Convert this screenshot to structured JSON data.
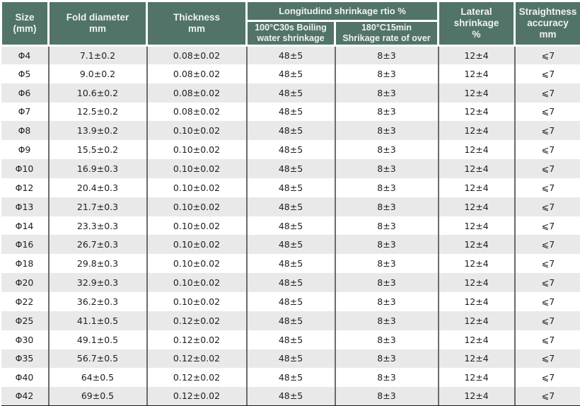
{
  "table": {
    "header": {
      "size": "Size\n(mm)",
      "fold_diameter": "Fold diameter\nmm",
      "thickness": "Thickness\nmm",
      "longitudinal_group": "Longitudind shrinkage rtio %",
      "boiling": "100°C30s Boiling\nwater shrinkage",
      "c180": "180°C15min\nShrikage rate of over",
      "lateral": "Lateral shrinkage\n%",
      "straightness": "Straightness\naccuracy\nmm"
    }
  },
  "colors": {
    "header_bg": "#527368",
    "header_text": "#eef3f1",
    "row_stripe": "#e9e9e9",
    "row_plain": "#ffffff",
    "column_divider": "#6b6b6b",
    "bottom_rule": "#1c1c1c",
    "body_text": "#1e1e1e",
    "header_separator": "#ffffff"
  },
  "chart_data": {
    "type": "table",
    "title": "",
    "columns": [
      "Size (mm)",
      "Fold diameter mm",
      "Thickness mm",
      "Longitudind shrinkage rtio % - 100°C30s Boiling water shrinkage",
      "Longitudind shrinkage rtio % - 180°C15min Shrikage rate of over",
      "Lateral shrinkage %",
      "Straightness accuracy mm"
    ],
    "column_keys": [
      "size",
      "fold-diameter",
      "thickness",
      "boiling-shrinkage",
      "shrinkage-180c",
      "lateral-shrinkage",
      "straightness"
    ],
    "rows": [
      [
        "Φ4",
        "7.1±0.2",
        "0.08±0.02",
        "48±5",
        "8±3",
        "12±4",
        "⩽7"
      ],
      [
        "Φ5",
        "9.0±0.2",
        "0.08±0.02",
        "48±5",
        "8±3",
        "12±4",
        "⩽7"
      ],
      [
        "Φ6",
        "10.6±0.2",
        "0.08±0.02",
        "48±5",
        "8±3",
        "12±4",
        "⩽7"
      ],
      [
        "Φ7",
        "12.5±0.2",
        "0.08±0.02",
        "48±5",
        "8±3",
        "12±4",
        "⩽7"
      ],
      [
        "Φ8",
        "13.9±0.2",
        "0.10±0.02",
        "48±5",
        "8±3",
        "12±4",
        "⩽7"
      ],
      [
        "Φ9",
        "15.5±0.2",
        "0.10±0.02",
        "48±5",
        "8±3",
        "12±4",
        "⩽7"
      ],
      [
        "Φ10",
        "16.9±0.3",
        "0.10±0.02",
        "48±5",
        "8±3",
        "12±4",
        "⩽7"
      ],
      [
        "Φ12",
        "20.4±0.3",
        "0.10±0.02",
        "48±5",
        "8±3",
        "12±4",
        "⩽7"
      ],
      [
        "Φ13",
        "21.7±0.3",
        "0.10±0.02",
        "48±5",
        "8±3",
        "12±4",
        "⩽7"
      ],
      [
        "Φ14",
        "23.3±0.3",
        "0.10±0.02",
        "48±5",
        "8±3",
        "12±4",
        "⩽7"
      ],
      [
        "Φ16",
        "26.7±0.3",
        "0.10±0.02",
        "48±5",
        "8±3",
        "12±4",
        "⩽7"
      ],
      [
        "Φ18",
        "29.8±0.3",
        "0.10±0.02",
        "48±5",
        "8±3",
        "12±4",
        "⩽7"
      ],
      [
        "Φ20",
        "32.9±0.3",
        "0.10±0.02",
        "48±5",
        "8±3",
        "12±4",
        "⩽7"
      ],
      [
        "Φ22",
        "36.2±0.3",
        "0.10±0.02",
        "48±5",
        "8±3",
        "12±4",
        "⩽7"
      ],
      [
        "Φ25",
        "41.1±0.5",
        "0.12±0.02",
        "48±5",
        "8±3",
        "12±4",
        "⩽7"
      ],
      [
        "Φ30",
        "49.1±0.5",
        "0.12±0.02",
        "48±5",
        "8±3",
        "12±4",
        "⩽7"
      ],
      [
        "Φ35",
        "56.7±0.5",
        "0.12±0.02",
        "48±5",
        "8±3",
        "12±4",
        "⩽7"
      ],
      [
        "Φ40",
        "64±0.5",
        "0.12±0.02",
        "48±5",
        "8±3",
        "12±4",
        "⩽7"
      ],
      [
        "Φ42",
        "69±0.5",
        "0.12±0.02",
        "48±5",
        "8±3",
        "12±4",
        "⩽7"
      ]
    ]
  }
}
